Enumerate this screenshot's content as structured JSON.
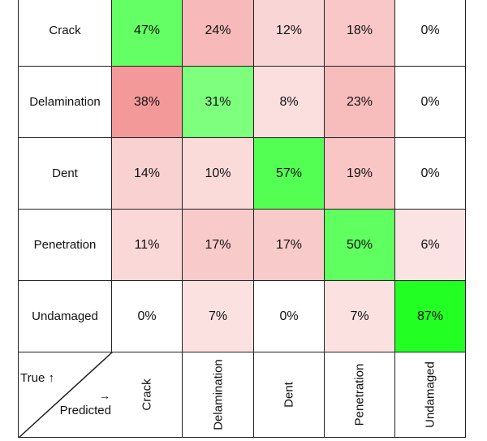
{
  "chart_data": {
    "type": "heatmap",
    "rows": [
      "Crack",
      "Delamination",
      "Dent",
      "Penetration",
      "Undamaged"
    ],
    "columns": [
      "Crack",
      "Delamination",
      "Dent",
      "Penetration",
      "Undamaged"
    ],
    "values": [
      [
        47,
        24,
        12,
        18,
        0
      ],
      [
        38,
        31,
        8,
        23,
        0
      ],
      [
        14,
        10,
        57,
        19,
        0
      ],
      [
        11,
        17,
        17,
        50,
        6
      ],
      [
        0,
        7,
        0,
        7,
        87
      ]
    ],
    "value_format": "percent",
    "row_axis_label": "True ↑",
    "col_axis_arrow": "→",
    "col_axis_label": "Predicted",
    "colors": {
      "diagonal": "#22ff22",
      "off_diagonal": "#f28b8b",
      "empty": "#ffffff",
      "border": "#222222"
    }
  }
}
